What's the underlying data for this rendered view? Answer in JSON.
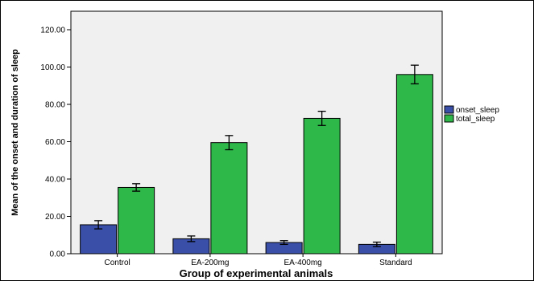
{
  "chart_data": {
    "type": "bar",
    "title": "",
    "xlabel": "Group of experimental animals",
    "ylabel": "Mean of the onset and duration of sleep",
    "categories": [
      "Control",
      "EA-200mg",
      "EA-400mg",
      "Standard"
    ],
    "ylim": [
      0,
      120
    ],
    "yticks": [
      "0.00",
      "20.00",
      "40.00",
      "60.00",
      "80.00",
      "100.00",
      "120.00"
    ],
    "grid": false,
    "legend_position": "right",
    "series": [
      {
        "name": "onset_sleep",
        "color": "#3a50a8",
        "values": [
          15.5,
          8.0,
          6.0,
          5.0
        ],
        "errors": [
          2.2,
          1.5,
          1.0,
          1.2
        ]
      },
      {
        "name": "total_sleep",
        "color": "#2eb84a",
        "values": [
          35.5,
          59.5,
          72.5,
          96.0
        ],
        "errors": [
          2.0,
          3.8,
          3.8,
          5.0
        ]
      }
    ]
  }
}
